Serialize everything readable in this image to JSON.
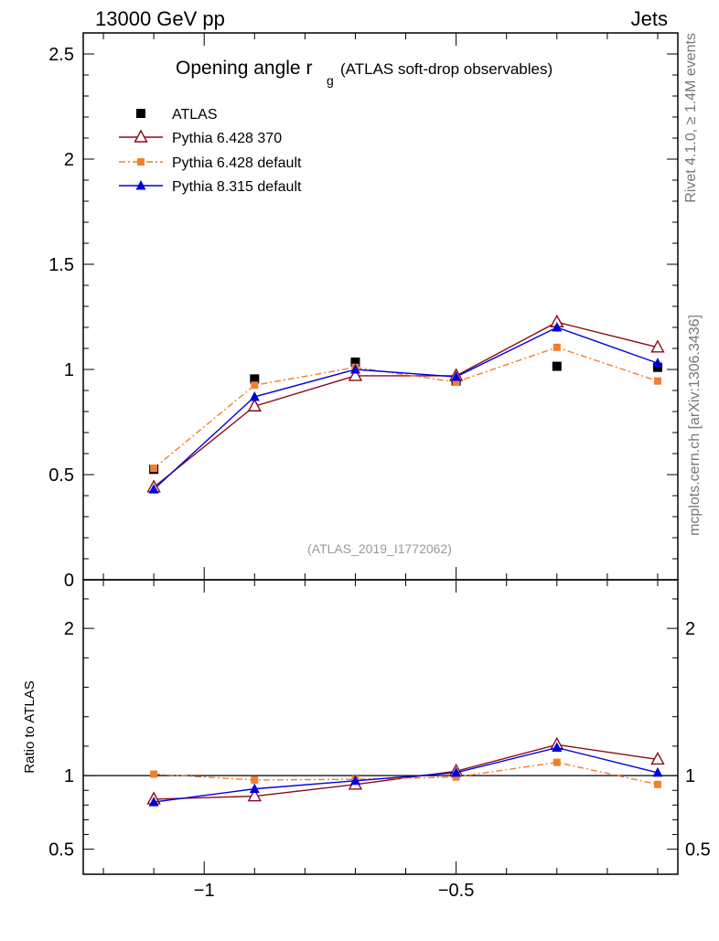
{
  "header": {
    "energy_label": "13000 GeV pp",
    "category_label": "Jets",
    "rivet_label": "Rivet 4.1.0, ≥ 1.4M events",
    "source_label": "mcplots.cern.ch [arXiv:1306.3436]"
  },
  "plot": {
    "title_main": "Opening angle r",
    "title_sub": "g",
    "title_extra": "(ATLAS soft-drop observables)",
    "analysis_id": "(ATLAS_2019_I1772062)",
    "ratio_ylabel": "Ratio to ATLAS"
  },
  "chart_data": {
    "type": "line",
    "x": [
      -1.1,
      -0.9,
      -0.7,
      -0.5,
      -0.3,
      -0.1
    ],
    "xlim": [
      -1.24,
      -0.06
    ],
    "main": {
      "ylim": [
        0,
        2.6
      ],
      "yticks": [
        0,
        0.5,
        1,
        1.5,
        2,
        2.5
      ],
      "ytick_labels": [
        "0",
        "0.5",
        "1",
        "1.5",
        "2",
        "2.5"
      ]
    },
    "ratio": {
      "ylim": [
        0.33,
        2.33
      ],
      "yticks": [
        0.5,
        1,
        2
      ],
      "ytick_labels": [
        "0.5",
        "1",
        "2"
      ],
      "reference": 1
    },
    "xticks": [
      -1,
      -0.5
    ],
    "xtick_labels": [
      "−1",
      "−0.5"
    ],
    "series": [
      {
        "name": "ATLAS",
        "color": "#000000",
        "marker": "square",
        "line": "none",
        "values": [
          0.525,
          0.955,
          1.035,
          0.945,
          1.015,
          1.01
        ]
      },
      {
        "name": "Pythia 6.428 370",
        "color": "#8b0a1a",
        "marker": "open-triangle",
        "line": "solid",
        "values": [
          0.44,
          0.825,
          0.97,
          0.97,
          1.225,
          1.105
        ],
        "ratio": [
          0.84,
          0.86,
          0.94,
          1.03,
          1.21,
          1.11
        ]
      },
      {
        "name": "Pythia 6.428 default",
        "color": "#f08030",
        "marker": "small-square",
        "line": "dashdot",
        "values": [
          0.53,
          0.925,
          1.01,
          0.94,
          1.105,
          0.945
        ],
        "ratio": [
          1.01,
          0.97,
          0.975,
          0.99,
          1.09,
          0.94
        ]
      },
      {
        "name": "Pythia 8.315 default",
        "color": "#0000dd",
        "marker": "filled-triangle",
        "line": "solid",
        "values": [
          0.43,
          0.87,
          1.0,
          0.965,
          1.2,
          1.03
        ],
        "ratio": [
          0.82,
          0.91,
          0.965,
          1.02,
          1.19,
          1.02
        ]
      }
    ]
  }
}
